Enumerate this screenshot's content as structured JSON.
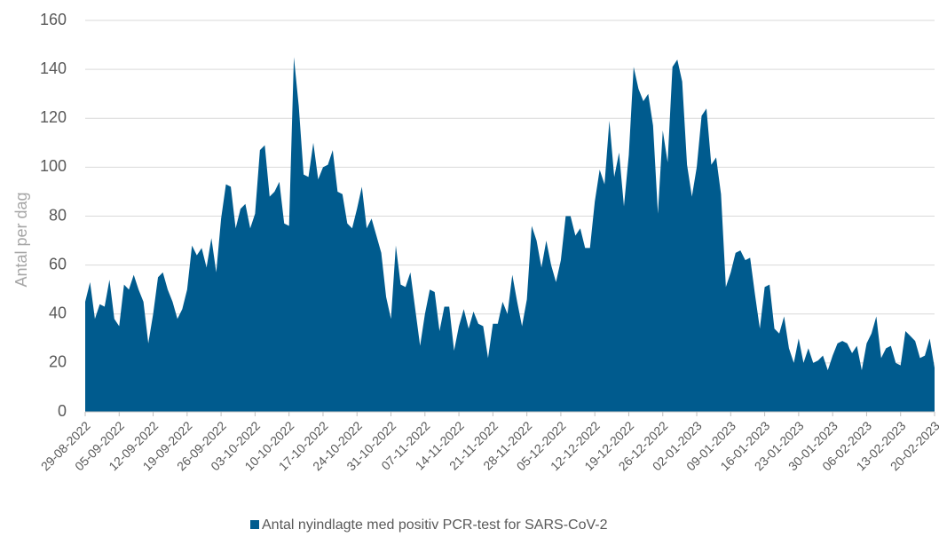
{
  "chart_data": {
    "type": "area",
    "y_label": "Antal per dag",
    "categories": [
      "29-08-2022",
      null,
      null,
      null,
      null,
      null,
      null,
      "05-09-2022",
      null,
      null,
      null,
      null,
      null,
      null,
      "12-09-2022",
      null,
      null,
      null,
      null,
      null,
      null,
      "19-09-2022",
      null,
      null,
      null,
      null,
      null,
      null,
      "26-09-2022",
      null,
      null,
      null,
      null,
      null,
      null,
      "03-10-2022",
      null,
      null,
      null,
      null,
      null,
      null,
      "10-10-2022",
      null,
      null,
      null,
      null,
      null,
      null,
      "17-10-2022",
      null,
      null,
      null,
      null,
      null,
      null,
      "24-10-2022",
      null,
      null,
      null,
      null,
      null,
      null,
      "31-10-2022",
      null,
      null,
      null,
      null,
      null,
      null,
      "07-11-2022",
      null,
      null,
      null,
      null,
      null,
      null,
      "14-11-2022",
      null,
      null,
      null,
      null,
      null,
      null,
      "21-11-2022",
      null,
      null,
      null,
      null,
      null,
      null,
      "28-11-2022",
      null,
      null,
      null,
      null,
      null,
      null,
      "05-12-2022",
      null,
      null,
      null,
      null,
      null,
      null,
      "12-12-2022",
      null,
      null,
      null,
      null,
      null,
      null,
      "19-12-2022",
      null,
      null,
      null,
      null,
      null,
      null,
      "26-12-2022",
      null,
      null,
      null,
      null,
      null,
      null,
      "02-01-2023",
      null,
      null,
      null,
      null,
      null,
      null,
      "09-01-2023",
      null,
      null,
      null,
      null,
      null,
      null,
      "16-01-2023",
      null,
      null,
      null,
      null,
      null,
      null,
      "23-01-2023",
      null,
      null,
      null,
      null,
      null,
      null,
      "30-01-2023",
      null,
      null,
      null,
      null,
      null,
      null,
      "06-02-2023",
      null,
      null,
      null,
      null,
      null,
      null,
      "13-02-2023",
      null,
      null,
      null,
      null,
      null,
      null,
      "20-02-2023"
    ],
    "series": [
      {
        "name": "Antal nyindlagte med positiv PCR-test for SARS-CoV-2",
        "color": "#005b8e",
        "values": [
          45,
          53,
          38,
          44,
          43,
          54,
          38,
          35,
          52,
          50,
          56,
          50,
          45,
          28,
          40,
          55,
          57,
          50,
          45,
          38,
          42,
          50,
          68,
          64,
          67,
          59,
          71,
          57,
          79,
          93,
          92,
          75,
          83,
          85,
          75,
          81,
          107,
          109,
          88,
          90,
          94,
          77,
          76,
          145,
          125,
          97,
          96,
          110,
          95,
          100,
          101,
          107,
          90,
          89,
          77,
          75,
          83,
          92,
          75,
          79,
          72,
          65,
          47,
          38,
          68,
          52,
          51,
          57,
          42,
          27,
          40,
          50,
          49,
          33,
          43,
          43,
          25,
          35,
          42,
          34,
          41,
          36,
          35,
          22,
          36,
          36,
          45,
          40,
          56,
          45,
          35,
          46,
          76,
          70,
          59,
          70,
          60,
          53,
          62,
          80,
          80,
          72,
          75,
          67,
          67,
          86,
          99,
          93,
          119,
          96,
          106,
          84,
          105,
          141,
          132,
          127,
          130,
          117,
          81,
          115,
          102,
          141,
          144,
          135,
          101,
          88,
          100,
          121,
          124,
          101,
          104,
          89,
          51,
          57,
          65,
          66,
          62,
          63,
          48,
          34,
          51,
          52,
          34,
          32,
          39,
          26,
          20,
          30,
          20,
          26,
          20,
          21,
          23,
          17,
          23,
          28,
          29,
          28,
          24,
          27,
          17,
          28,
          32,
          39,
          22,
          26,
          27,
          20,
          19,
          33,
          31,
          29,
          22,
          23,
          30,
          18
        ]
      }
    ],
    "ylim": [
      0,
      160
    ],
    "yticks": [
      0,
      20,
      40,
      60,
      80,
      100,
      120,
      140,
      160
    ],
    "grid": true,
    "legend": "bottom"
  }
}
